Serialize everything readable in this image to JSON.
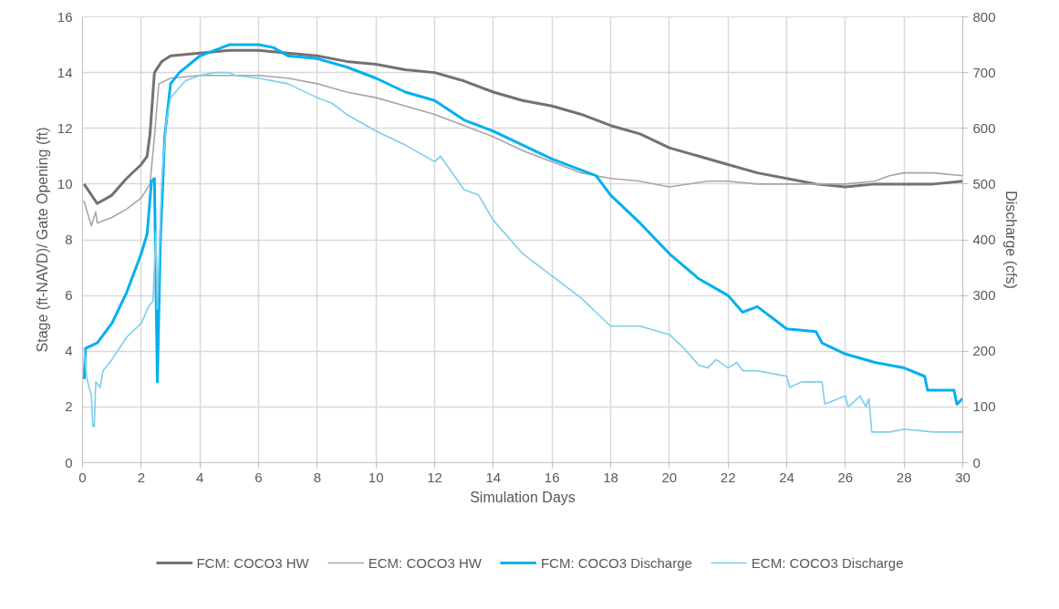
{
  "chart_data": {
    "type": "line",
    "xlabel": "Simulation Days",
    "ylabel": "Stage (ft-NAVD)/ Gate Opening (ft)",
    "y2label": "Discharge (cfs)",
    "xlim": [
      0,
      30
    ],
    "xticks": [
      0,
      2,
      4,
      6,
      8,
      10,
      12,
      14,
      16,
      18,
      20,
      22,
      24,
      26,
      28,
      30
    ],
    "ylim": [
      0,
      16
    ],
    "yticks": [
      0,
      2,
      4,
      6,
      8,
      10,
      12,
      14,
      16
    ],
    "y2lim": [
      0,
      800
    ],
    "y2ticks": [
      0,
      100,
      200,
      300,
      400,
      500,
      600,
      700,
      800
    ],
    "grid": true,
    "legend": "bottom",
    "marker": "none",
    "line_style": "solid",
    "series": [
      {
        "name": "FCM: COCO3 HW",
        "color": "#767171",
        "x": [
          0.05,
          0.5,
          1,
          1.5,
          2,
          2.2,
          2.3,
          2.45,
          2.7,
          3,
          4,
          5,
          6,
          7,
          8,
          9,
          10,
          11,
          12,
          13,
          14,
          15,
          16,
          17,
          18,
          19,
          20,
          21,
          22,
          23,
          24,
          25,
          26,
          27,
          28,
          29,
          30
        ],
        "values": [
          10.0,
          9.3,
          9.6,
          10.2,
          10.7,
          11.0,
          11.8,
          14.0,
          14.4,
          14.6,
          14.7,
          14.8,
          14.8,
          14.7,
          14.6,
          14.4,
          14.3,
          14.1,
          14.0,
          13.7,
          13.3,
          13.0,
          12.8,
          12.5,
          12.1,
          11.8,
          11.3,
          11.0,
          10.7,
          10.4,
          10.2,
          10.0,
          9.9,
          10.0,
          10.0,
          10.0,
          10.1
        ]
      },
      {
        "name": "ECM: COCO3 HW",
        "color": "#a6a6a6",
        "x": [
          0.05,
          0.3,
          0.45,
          0.5,
          1,
          1.5,
          2,
          2.3,
          2.45,
          2.6,
          3,
          4,
          5,
          6,
          7,
          8,
          9,
          10,
          11,
          12,
          13,
          14,
          15,
          16,
          17,
          18,
          19,
          20,
          21.3,
          22,
          23,
          24,
          25,
          26,
          27,
          27.5,
          28,
          29,
          30
        ],
        "values": [
          9.4,
          8.5,
          9.0,
          8.6,
          8.8,
          9.1,
          9.5,
          10.0,
          11.7,
          13.6,
          13.8,
          13.9,
          13.9,
          13.9,
          13.8,
          13.6,
          13.3,
          13.1,
          12.8,
          12.5,
          12.1,
          11.7,
          11.2,
          10.8,
          10.4,
          10.2,
          10.1,
          9.9,
          10.1,
          10.1,
          10.0,
          10.0,
          10.0,
          10.0,
          10.1,
          10.3,
          10.4,
          10.4,
          10.3
        ]
      },
      {
        "name": "FCM: COCO3 Discharge",
        "color": "#00b0f0",
        "axis": "y2",
        "x": [
          0.06,
          0.1,
          0.5,
          1,
          1.5,
          2,
          2.2,
          2.35,
          2.45,
          2.55,
          2.65,
          2.8,
          3,
          3.3,
          4,
          5,
          6,
          6.5,
          7,
          8,
          9,
          10,
          11,
          12,
          13,
          14,
          15,
          16,
          17,
          17.5,
          18,
          19,
          20,
          21,
          22,
          22.5,
          23,
          24,
          25,
          25.2,
          26,
          27,
          28,
          28.7,
          28.8,
          29.7,
          29.8,
          30
        ],
        "values": [
          150,
          205,
          215,
          250,
          305,
          375,
          410,
          505,
          510,
          145,
          395,
          585,
          680,
          700,
          730,
          750,
          750,
          745,
          730,
          725,
          710,
          690,
          665,
          650,
          615,
          595,
          570,
          545,
          525,
          515,
          480,
          430,
          375,
          330,
          300,
          270,
          280,
          240,
          235,
          215,
          195,
          180,
          170,
          155,
          130,
          130,
          105,
          115
        ]
      },
      {
        "name": "ECM: COCO3 Discharge",
        "color": "#7fcdec",
        "axis": "y2",
        "x": [
          0.05,
          0.15,
          0.3,
          0.35,
          0.4,
          0.45,
          0.6,
          0.7,
          1,
          1.5,
          2,
          2.25,
          2.4,
          2.5,
          2.55,
          2.7,
          2.85,
          3,
          3.5,
          4,
          4.5,
          5,
          5.2,
          6,
          7,
          8,
          8.5,
          9,
          10,
          11,
          12,
          12.2,
          13,
          13.5,
          14,
          15,
          16,
          17,
          17.5,
          18,
          19,
          20,
          20.5,
          21,
          21.3,
          21.6,
          22,
          22.3,
          22.5,
          23,
          24,
          24.1,
          24.5,
          25.2,
          25.3,
          26,
          26.1,
          26.5,
          26.7,
          26.8,
          26.9,
          27.5,
          28,
          29,
          30
        ],
        "values": [
          205,
          150,
          120,
          65,
          65,
          145,
          135,
          165,
          185,
          225,
          250,
          280,
          290,
          415,
          275,
          505,
          610,
          655,
          685,
          695,
          700,
          700,
          695,
          690,
          680,
          655,
          645,
          625,
          595,
          570,
          540,
          550,
          490,
          480,
          435,
          375,
          335,
          295,
          270,
          245,
          245,
          230,
          205,
          175,
          170,
          185,
          170,
          180,
          165,
          165,
          155,
          135,
          145,
          145,
          105,
          120,
          100,
          120,
          100,
          115,
          55,
          55,
          60,
          55,
          55
        ]
      }
    ]
  }
}
